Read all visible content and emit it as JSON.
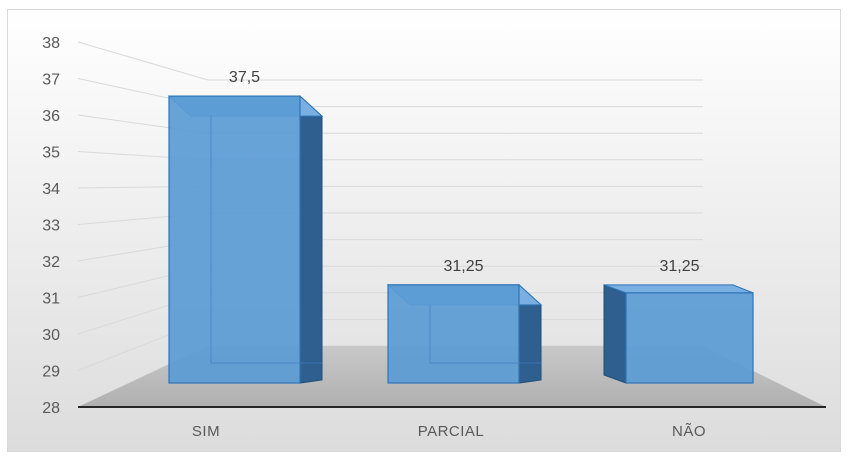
{
  "chart_data": {
    "type": "bar",
    "style": "3d-column",
    "categories": [
      "SIM",
      "PARCIAL",
      "NÃO"
    ],
    "values": [
      37.5,
      31.25,
      31.25
    ],
    "data_labels": [
      "37,5",
      "31,25",
      "31,25"
    ],
    "title": "",
    "xlabel": "",
    "ylabel": "",
    "ylim": [
      28,
      38
    ],
    "yticks": [
      "28",
      "29",
      "30",
      "31",
      "32",
      "33",
      "34",
      "35",
      "36",
      "37",
      "38"
    ],
    "grid": true,
    "legend": "none",
    "bar_color": "#5b9bd5",
    "bar_color_light": "#79afe2",
    "bar_color_dark": "#2f5f8f",
    "floor_color": "#bfbfbf"
  }
}
